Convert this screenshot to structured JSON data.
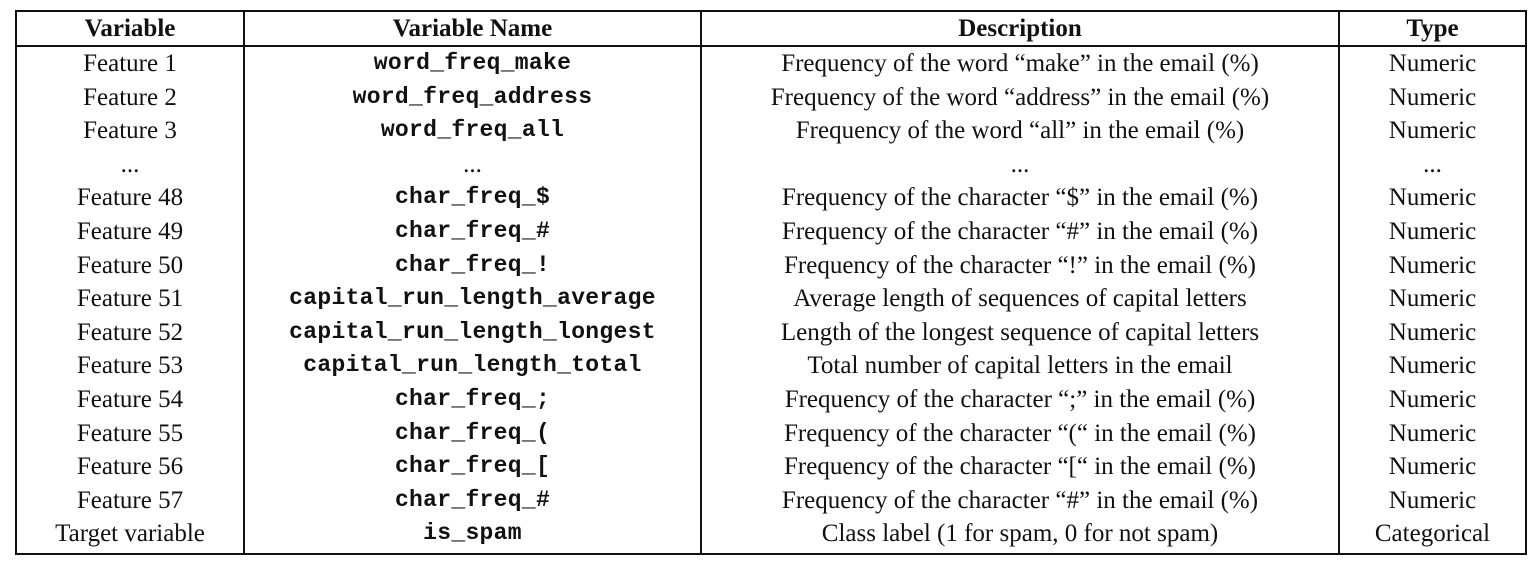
{
  "table": {
    "headers": [
      "Variable",
      "Variable Name",
      "Description",
      "Type"
    ],
    "rows": [
      [
        "Feature 1",
        "word_freq_make",
        "Frequency of the word “make” in the email (%)",
        "Numeric"
      ],
      [
        "Feature 2",
        "word_freq_address",
        "Frequency of the word “address” in the email (%)",
        "Numeric"
      ],
      [
        "Feature 3",
        "word_freq_all",
        "Frequency of the word “all” in the email (%)",
        "Numeric"
      ],
      [
        "...",
        "...",
        "...",
        "..."
      ],
      [
        "Feature 48",
        "char_freq_$",
        "Frequency of the character “$” in the email (%)",
        "Numeric"
      ],
      [
        "Feature 49",
        "char_freq_#",
        "Frequency of the character “#” in the email (%)",
        "Numeric"
      ],
      [
        "Feature 50",
        "char_freq_!",
        "Frequency of the character “!” in the email (%)",
        "Numeric"
      ],
      [
        "Feature 51",
        "capital_run_length_average",
        "Average length of sequences of capital letters",
        "Numeric"
      ],
      [
        "Feature 52",
        "capital_run_length_longest",
        "Length of the longest sequence of capital letters",
        "Numeric"
      ],
      [
        "Feature 53",
        "capital_run_length_total",
        "Total number of capital letters in the email",
        "Numeric"
      ],
      [
        "Feature 54",
        "char_freq_;",
        "Frequency of the character “;” in the email (%)",
        "Numeric"
      ],
      [
        "Feature 55",
        "char_freq_(",
        "Frequency of the character “(“ in the email (%)",
        "Numeric"
      ],
      [
        "Feature 56",
        "char_freq_[",
        "Frequency of the character “[“ in the email (%)",
        "Numeric"
      ],
      [
        "Feature 57",
        "char_freq_#",
        "Frequency of the character “#” in the email (%)",
        "Numeric"
      ],
      [
        "Target variable",
        "is_spam",
        "Class label (1 for spam, 0 for not spam)",
        "Categorical"
      ]
    ]
  }
}
